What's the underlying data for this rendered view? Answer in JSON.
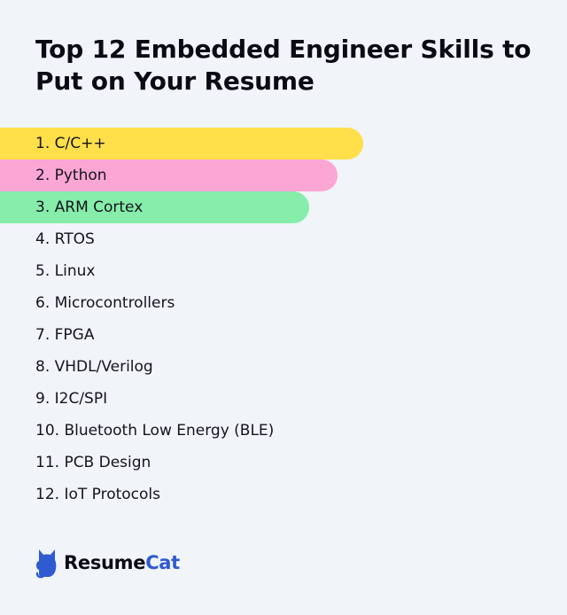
{
  "title": "Top 12 Embedded Engineer Skills to Put on Your Resume",
  "skills": [
    {
      "label": "1. C/C++",
      "highlight": "#ffdf4a",
      "bar_fraction": 1.0
    },
    {
      "label": "2. Python",
      "highlight": "#fba6d4",
      "bar_fraction": 0.93
    },
    {
      "label": "3. ARM Cortex",
      "highlight": "#86edab",
      "bar_fraction": 0.85
    },
    {
      "label": "4. RTOS"
    },
    {
      "label": "5. Linux"
    },
    {
      "label": "6. Microcontrollers"
    },
    {
      "label": "7. FPGA"
    },
    {
      "label": "8. VHDL/Verilog"
    },
    {
      "label": "9. I2C/SPI"
    },
    {
      "label": "10. Bluetooth Low Energy (BLE)"
    },
    {
      "label": "11. PCB Design"
    },
    {
      "label": "12. IoT Protocols"
    }
  ],
  "brand": {
    "name_part1": "Resume",
    "name_part2": "Cat",
    "icon": "cat-icon",
    "accent": "#2f5bd0"
  }
}
